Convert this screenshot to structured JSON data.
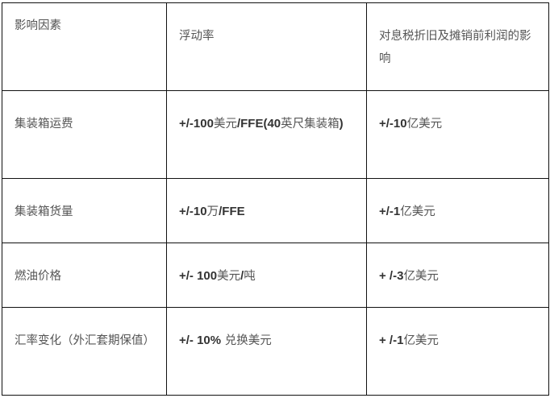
{
  "table": {
    "header": [
      "影响因素",
      "浮动率",
      "对息税折旧及摊销前利润的影响"
    ],
    "rows": [
      {
        "factor": "集装箱运费",
        "rate": [
          {
            "t": "+/-100",
            "b": true
          },
          {
            "t": "美元",
            "b": false
          },
          {
            "t": "/FFE(40",
            "b": true
          },
          {
            "t": "英尺集装箱",
            "b": false
          },
          {
            "t": ")",
            "b": true
          }
        ],
        "impact": [
          {
            "t": "+/-10",
            "b": true
          },
          {
            "t": "亿美元",
            "b": false
          }
        ]
      },
      {
        "factor": "集装箱货量",
        "rate": [
          {
            "t": "+/-10",
            "b": true
          },
          {
            "t": "万",
            "b": false
          },
          {
            "t": "/FFE",
            "b": true
          }
        ],
        "impact": [
          {
            "t": "+/-1",
            "b": true
          },
          {
            "t": "亿美元",
            "b": false
          }
        ]
      },
      {
        "factor": "燃油价格",
        "rate": [
          {
            "t": "+/- 100",
            "b": true
          },
          {
            "t": "美元",
            "b": false
          },
          {
            "t": "/",
            "b": true
          },
          {
            "t": "吨",
            "b": false
          }
        ],
        "impact": [
          {
            "t": "+ /-3",
            "b": true
          },
          {
            "t": "亿美元",
            "b": false
          }
        ]
      },
      {
        "factor": "汇率变化（外汇套期保值）",
        "rate": [
          {
            "t": "+/- 10%",
            "b": true
          },
          {
            "t": " 兑换美元",
            "b": false
          }
        ],
        "impact": [
          {
            "t": "+ /-1",
            "b": true
          },
          {
            "t": "亿美元",
            "b": false
          }
        ]
      }
    ]
  }
}
